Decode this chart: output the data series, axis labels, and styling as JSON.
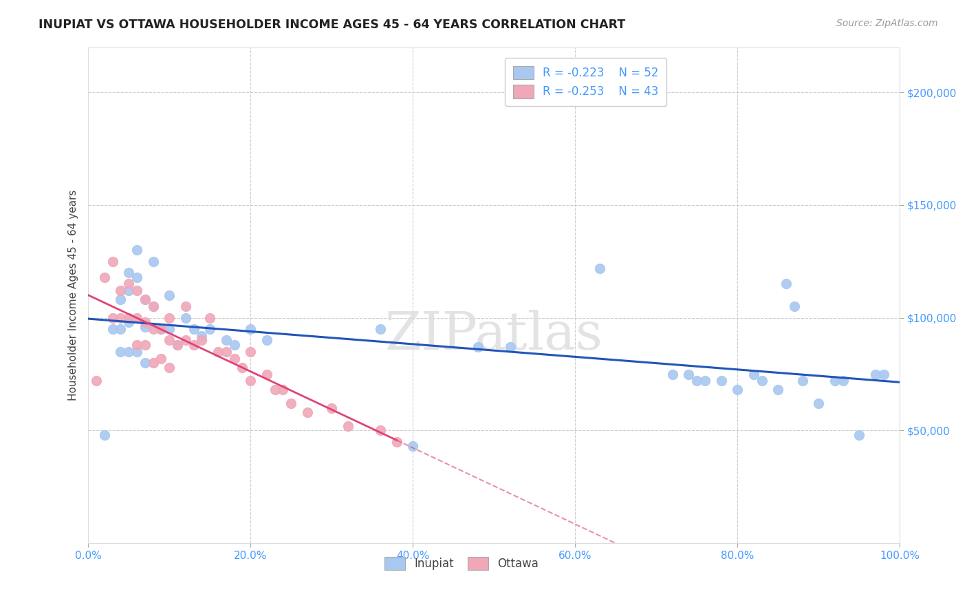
{
  "title": "INUPIAT VS OTTAWA HOUSEHOLDER INCOME AGES 45 - 64 YEARS CORRELATION CHART",
  "source": "Source: ZipAtlas.com",
  "ylabel": "Householder Income Ages 45 - 64 years",
  "xlim": [
    0.0,
    1.0
  ],
  "ylim": [
    0,
    220000
  ],
  "yticks": [
    50000,
    100000,
    150000,
    200000
  ],
  "ytick_labels": [
    "$50,000",
    "$100,000",
    "$150,000",
    "$200,000"
  ],
  "xtick_labels": [
    "0.0%",
    "20.0%",
    "40.0%",
    "60.0%",
    "80.0%",
    "100.0%"
  ],
  "xticks": [
    0.0,
    0.2,
    0.4,
    0.6,
    0.8,
    1.0
  ],
  "inupiat_R": -0.223,
  "inupiat_N": 52,
  "ottawa_R": -0.253,
  "ottawa_N": 43,
  "inupiat_color": "#a8c8f0",
  "ottawa_color": "#f0a8b8",
  "inupiat_line_color": "#2255bb",
  "ottawa_line_color": "#dd4477",
  "watermark_text": "ZIPatlas",
  "background_color": "#ffffff",
  "grid_color": "#cccccc",
  "inupiat_x": [
    0.02,
    0.03,
    0.04,
    0.04,
    0.05,
    0.05,
    0.05,
    0.06,
    0.06,
    0.07,
    0.07,
    0.08,
    0.08,
    0.09,
    0.1,
    0.1,
    0.11,
    0.12,
    0.13,
    0.15,
    0.17,
    0.2,
    0.22,
    0.48,
    0.52,
    0.63,
    0.72,
    0.74,
    0.75,
    0.76,
    0.78,
    0.8,
    0.82,
    0.83,
    0.85,
    0.86,
    0.87,
    0.88,
    0.9,
    0.92,
    0.93,
    0.95,
    0.97,
    0.98,
    0.04,
    0.05,
    0.06,
    0.07,
    0.14,
    0.18,
    0.36,
    0.4
  ],
  "inupiat_y": [
    48000,
    95000,
    108000,
    95000,
    120000,
    112000,
    98000,
    130000,
    118000,
    108000,
    96000,
    125000,
    105000,
    95000,
    110000,
    95000,
    88000,
    100000,
    95000,
    95000,
    90000,
    95000,
    90000,
    87000,
    87000,
    122000,
    75000,
    75000,
    72000,
    72000,
    72000,
    68000,
    75000,
    72000,
    68000,
    115000,
    105000,
    72000,
    62000,
    72000,
    72000,
    48000,
    75000,
    75000,
    85000,
    85000,
    85000,
    80000,
    92000,
    88000,
    95000,
    43000
  ],
  "ottawa_x": [
    0.01,
    0.02,
    0.03,
    0.03,
    0.04,
    0.04,
    0.05,
    0.05,
    0.06,
    0.06,
    0.06,
    0.07,
    0.07,
    0.07,
    0.08,
    0.08,
    0.08,
    0.09,
    0.09,
    0.1,
    0.1,
    0.1,
    0.11,
    0.12,
    0.12,
    0.13,
    0.14,
    0.15,
    0.16,
    0.17,
    0.18,
    0.19,
    0.2,
    0.2,
    0.22,
    0.23,
    0.24,
    0.25,
    0.27,
    0.3,
    0.32,
    0.36,
    0.38
  ],
  "ottawa_y": [
    72000,
    118000,
    125000,
    100000,
    112000,
    100000,
    115000,
    100000,
    112000,
    100000,
    88000,
    108000,
    98000,
    88000,
    105000,
    95000,
    80000,
    95000,
    82000,
    100000,
    90000,
    78000,
    88000,
    105000,
    90000,
    88000,
    90000,
    100000,
    85000,
    85000,
    82000,
    78000,
    85000,
    72000,
    75000,
    68000,
    68000,
    62000,
    58000,
    60000,
    52000,
    50000,
    45000
  ]
}
